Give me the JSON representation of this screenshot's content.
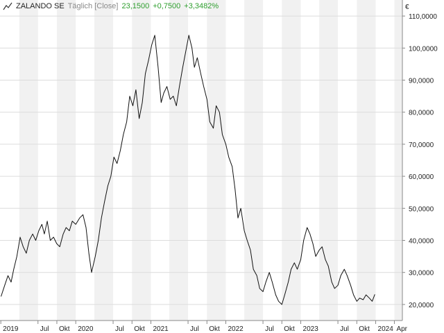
{
  "header": {
    "icon": "line-chart-icon",
    "ticker": "ZALANDO SE",
    "interval": "Täglich [Close]",
    "last": "23,1500",
    "change": "+0,7500",
    "change_pct": "+3,3482%",
    "positive_color": "#2e9e2e"
  },
  "colors": {
    "line": "#111111",
    "band": "#f1f1f1",
    "grid": "#dcdcdc",
    "axis": "#888888"
  },
  "chart_data": {
    "type": "line",
    "series": [
      {
        "values": [
          [
            "2019-01-02",
            22.5
          ],
          [
            "2019-01-20",
            26
          ],
          [
            "2019-02-05",
            29
          ],
          [
            "2019-02-20",
            27
          ],
          [
            "2019-03-05",
            31
          ],
          [
            "2019-03-20",
            35
          ],
          [
            "2019-04-05",
            41
          ],
          [
            "2019-04-20",
            38
          ],
          [
            "2019-05-05",
            36
          ],
          [
            "2019-05-20",
            40
          ],
          [
            "2019-06-05",
            42
          ],
          [
            "2019-06-20",
            40
          ],
          [
            "2019-07-05",
            43
          ],
          [
            "2019-07-20",
            45
          ],
          [
            "2019-08-01",
            42
          ],
          [
            "2019-08-15",
            46
          ],
          [
            "2019-08-30",
            40
          ],
          [
            "2019-09-15",
            41
          ],
          [
            "2019-09-30",
            39
          ],
          [
            "2019-10-15",
            38
          ],
          [
            "2019-11-01",
            42
          ],
          [
            "2019-11-15",
            44
          ],
          [
            "2019-12-01",
            43
          ],
          [
            "2019-12-15",
            46
          ],
          [
            "2020-01-01",
            45
          ],
          [
            "2020-01-20",
            47
          ],
          [
            "2020-02-05",
            48
          ],
          [
            "2020-02-20",
            44
          ],
          [
            "2020-03-05",
            36
          ],
          [
            "2020-03-18",
            30
          ],
          [
            "2020-04-05",
            35
          ],
          [
            "2020-04-20",
            40
          ],
          [
            "2020-05-05",
            47
          ],
          [
            "2020-05-20",
            52
          ],
          [
            "2020-06-05",
            57
          ],
          [
            "2020-06-20",
            60
          ],
          [
            "2020-07-05",
            66
          ],
          [
            "2020-07-20",
            64
          ],
          [
            "2020-08-05",
            68
          ],
          [
            "2020-08-20",
            73
          ],
          [
            "2020-09-05",
            77
          ],
          [
            "2020-09-20",
            85
          ],
          [
            "2020-10-05",
            82
          ],
          [
            "2020-10-20",
            87
          ],
          [
            "2020-11-05",
            78
          ],
          [
            "2020-11-20",
            83
          ],
          [
            "2020-12-05",
            92
          ],
          [
            "2020-12-20",
            96
          ],
          [
            "2021-01-05",
            101
          ],
          [
            "2021-01-20",
            104
          ],
          [
            "2021-02-05",
            94
          ],
          [
            "2021-02-20",
            83
          ],
          [
            "2021-03-05",
            86
          ],
          [
            "2021-03-20",
            88
          ],
          [
            "2021-04-05",
            84
          ],
          [
            "2021-04-20",
            85
          ],
          [
            "2021-05-05",
            82
          ],
          [
            "2021-05-20",
            88
          ],
          [
            "2021-06-05",
            94
          ],
          [
            "2021-06-20",
            99
          ],
          [
            "2021-07-05",
            104
          ],
          [
            "2021-07-20",
            100
          ],
          [
            "2021-08-01",
            94
          ],
          [
            "2021-08-15",
            97
          ],
          [
            "2021-09-01",
            92
          ],
          [
            "2021-09-15",
            88
          ],
          [
            "2021-10-01",
            84
          ],
          [
            "2021-10-15",
            77
          ],
          [
            "2021-11-01",
            75
          ],
          [
            "2021-11-15",
            82
          ],
          [
            "2021-12-01",
            80
          ],
          [
            "2021-12-15",
            73
          ],
          [
            "2022-01-01",
            70
          ],
          [
            "2022-01-15",
            66
          ],
          [
            "2022-02-01",
            63
          ],
          [
            "2022-02-15",
            56
          ],
          [
            "2022-03-01",
            47
          ],
          [
            "2022-03-15",
            50
          ],
          [
            "2022-04-01",
            43
          ],
          [
            "2022-04-15",
            40
          ],
          [
            "2022-05-01",
            37
          ],
          [
            "2022-05-15",
            31
          ],
          [
            "2022-06-01",
            29
          ],
          [
            "2022-06-15",
            25
          ],
          [
            "2022-07-01",
            24
          ],
          [
            "2022-07-15",
            27
          ],
          [
            "2022-08-01",
            30
          ],
          [
            "2022-08-15",
            27
          ],
          [
            "2022-09-01",
            23
          ],
          [
            "2022-09-15",
            21
          ],
          [
            "2022-10-01",
            20
          ],
          [
            "2022-10-15",
            23
          ],
          [
            "2022-11-01",
            27
          ],
          [
            "2022-11-15",
            31
          ],
          [
            "2022-12-01",
            33
          ],
          [
            "2022-12-15",
            31
          ],
          [
            "2023-01-01",
            34
          ],
          [
            "2023-01-15",
            40
          ],
          [
            "2023-02-01",
            44
          ],
          [
            "2023-02-15",
            42
          ],
          [
            "2023-03-01",
            39
          ],
          [
            "2023-03-15",
            35
          ],
          [
            "2023-04-01",
            37
          ],
          [
            "2023-04-15",
            38
          ],
          [
            "2023-05-01",
            34
          ],
          [
            "2023-05-15",
            32
          ],
          [
            "2023-06-01",
            27
          ],
          [
            "2023-06-15",
            25
          ],
          [
            "2023-07-01",
            26
          ],
          [
            "2023-07-15",
            29
          ],
          [
            "2023-08-01",
            31
          ],
          [
            "2023-08-15",
            29
          ],
          [
            "2023-09-01",
            26
          ],
          [
            "2023-09-15",
            23
          ],
          [
            "2023-10-01",
            21
          ],
          [
            "2023-10-15",
            22
          ],
          [
            "2023-11-01",
            21.5
          ],
          [
            "2023-11-15",
            23
          ],
          [
            "2023-12-01",
            22
          ],
          [
            "2023-12-15",
            21
          ],
          [
            "2023-12-28",
            23.15
          ]
        ]
      }
    ],
    "x_range": [
      "2018-12-28",
      "2024-05-10"
    ],
    "ylim": [
      15,
      115
    ],
    "y_ticks": [
      20,
      30,
      40,
      50,
      60,
      70,
      80,
      90,
      100,
      110
    ],
    "y_tick_labels": [
      "20,0000",
      "30,0000",
      "40,0000",
      "50,0000",
      "60,0000",
      "70,0000",
      "80,0000",
      "90,0000",
      "100,0000",
      "110,0000"
    ],
    "y_unit": "€",
    "x_ticks": [
      {
        "date": "2019-01-01",
        "label": "2019"
      },
      {
        "date": "2019-07-01",
        "label": "Jul"
      },
      {
        "date": "2019-10-01",
        "label": "Okt"
      },
      {
        "date": "2020-01-01",
        "label": "2020"
      },
      {
        "date": "2020-07-01",
        "label": "Jul"
      },
      {
        "date": "2020-10-01",
        "label": "Okt"
      },
      {
        "date": "2021-01-01",
        "label": "2021"
      },
      {
        "date": "2021-07-01",
        "label": "Jul"
      },
      {
        "date": "2021-10-01",
        "label": "Okt"
      },
      {
        "date": "2022-01-01",
        "label": "2022"
      },
      {
        "date": "2022-07-01",
        "label": "Jul"
      },
      {
        "date": "2022-10-01",
        "label": "Okt"
      },
      {
        "date": "2023-01-01",
        "label": "2023"
      },
      {
        "date": "2023-07-01",
        "label": "Jul"
      },
      {
        "date": "2023-10-01",
        "label": "Okt"
      },
      {
        "date": "2024-01-01",
        "label": "2024"
      },
      {
        "date": "2024-04-01",
        "label": "Apr"
      }
    ],
    "shaded_quarters": [
      [
        "2019-04-01",
        "2019-07-01"
      ],
      [
        "2019-10-01",
        "2020-01-01"
      ],
      [
        "2020-04-01",
        "2020-07-01"
      ],
      [
        "2020-10-01",
        "2021-01-01"
      ],
      [
        "2021-04-01",
        "2021-07-01"
      ],
      [
        "2021-10-01",
        "2022-01-01"
      ],
      [
        "2022-04-01",
        "2022-07-01"
      ],
      [
        "2022-10-01",
        "2023-01-01"
      ],
      [
        "2023-04-01",
        "2023-07-01"
      ],
      [
        "2023-10-01",
        "2024-01-01"
      ],
      [
        "2024-04-01",
        "2024-05-10"
      ]
    ],
    "grid": true
  }
}
